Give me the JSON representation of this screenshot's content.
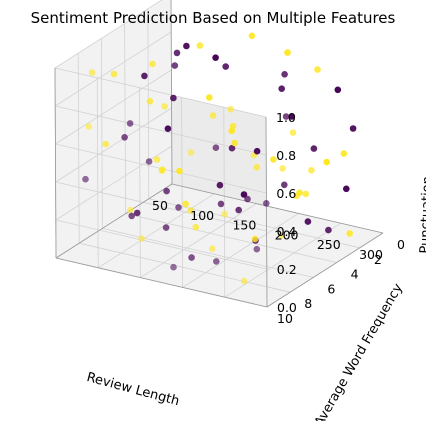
{
  "chart_data": {
    "type": "scatter",
    "projection": "3d",
    "title": "Sentiment Prediction Based on Multiple Features",
    "xlabel": "Review Length",
    "ylabel": "Average Word Frequency",
    "zlabel": "Punctuation",
    "xlim": [
      50,
      300
    ],
    "ylim": [
      0,
      10
    ],
    "zlim": [
      0,
      1
    ],
    "x_ticks": [
      50,
      100,
      150,
      200,
      250,
      300
    ],
    "y_ticks": [
      0,
      2,
      4,
      6,
      8,
      10
    ],
    "z_ticks": [
      0.0,
      0.2,
      0.4,
      0.6,
      0.8,
      1.0
    ],
    "grid": true,
    "colormap": "viridis",
    "class_colors": {
      "0": "#440154",
      "1": "#fde725"
    },
    "series": [
      {
        "sentiment": 0,
        "points": [
          [
            62,
            1.2,
            0.35
          ],
          [
            88,
            6.8,
            0.55
          ],
          [
            95,
            3.1,
            0.62
          ],
          [
            118,
            8.5,
            0.72
          ],
          [
            140,
            2.4,
            0.18
          ],
          [
            72,
            4.6,
            0.05
          ],
          [
            130,
            5.5,
            0.92
          ],
          [
            165,
            1.0,
            0.33
          ],
          [
            178,
            4.1,
            0.48
          ],
          [
            210,
            7.8,
            0.66
          ],
          [
            240,
            2.1,
            0.08
          ],
          [
            255,
            5.2,
            0.41
          ],
          [
            265,
            0.6,
            0.22
          ],
          [
            285,
            3.6,
            0.14
          ],
          [
            150,
            9.2,
            0.58
          ],
          [
            195,
            6.3,
            0.29
          ],
          [
            108,
            0.4,
            0.74
          ],
          [
            225,
            8.9,
            0.12
          ],
          [
            270,
            6.1,
            0.82
          ],
          [
            160,
            3.3,
            0.86
          ],
          [
            205,
            0.9,
            0.55
          ],
          [
            80,
            9.6,
            0.43
          ],
          [
            290,
            1.8,
            0.61
          ],
          [
            245,
            4.4,
            0.95
          ],
          [
            175,
            7.4,
            0.03
          ],
          [
            125,
            5.9,
            0.27
          ],
          [
            218,
            2.7,
            0.78
          ],
          [
            100,
            7.1,
            0.16
          ],
          [
            232,
            6.7,
            0.37
          ],
          [
            58,
            2.9,
            0.69
          ],
          [
            188,
            9.9,
            0.09
          ],
          [
            275,
            8.2,
            0.45
          ],
          [
            145,
            0.7,
            0.07
          ],
          [
            260,
            3.0,
            0.52
          ],
          [
            112,
            4.0,
            0.91
          ],
          [
            198,
            5.0,
            0.21
          ],
          [
            168,
            8.0,
            0.31
          ],
          [
            90,
            1.6,
            0.83
          ],
          [
            280,
            9.4,
            0.26
          ],
          [
            138,
            6.9,
            0.13
          ],
          [
            250,
            0.2,
            0.71
          ],
          [
            215,
            4.8,
            0.06
          ]
        ]
      },
      {
        "sentiment": 1,
        "points": [
          [
            70,
            0.8,
            0.12
          ],
          [
            98,
            5.1,
            0.88
          ],
          [
            155,
            2.2,
            0.41
          ],
          [
            182,
            6.0,
            0.73
          ],
          [
            222,
            1.5,
            0.19
          ],
          [
            248,
            7.3,
            0.64
          ],
          [
            268,
            4.3,
            0.34
          ],
          [
            295,
            2.5,
            0.09
          ],
          [
            122,
            8.8,
            0.28
          ],
          [
            60,
            6.4,
            0.47
          ],
          [
            135,
            3.7,
            0.96
          ],
          [
            170,
            9.5,
            0.57
          ],
          [
            202,
            3.9,
            0.02
          ],
          [
            238,
            9.1,
            0.39
          ],
          [
            285,
            6.6,
            0.77
          ],
          [
            85,
            3.4,
            0.24
          ],
          [
            110,
            1.1,
            0.56
          ],
          [
            158,
            5.8,
            0.11
          ],
          [
            192,
            0.3,
            0.85
          ],
          [
            228,
            5.6,
            0.49
          ],
          [
            262,
            2.8,
            0.93
          ],
          [
            298,
            8.6,
            0.32
          ],
          [
            76,
            9.0,
            0.68
          ],
          [
            148,
            7.7,
            0.81
          ],
          [
            212,
            8.3,
            0.15
          ],
          [
            272,
            1.3,
            0.44
          ],
          [
            102,
            2.6,
            0.05
          ],
          [
            185,
            4.5,
            0.62
          ],
          [
            242,
            3.2,
            0.26
          ],
          [
            128,
            0.5,
            0.38
          ],
          [
            65,
            7.9,
            0.91
          ],
          [
            162,
            6.5,
            0.23
          ],
          [
            208,
            9.8,
            0.71
          ],
          [
            255,
            8.7,
            0.04
          ],
          [
            290,
            5.4,
            0.53
          ],
          [
            92,
            4.9,
            0.67
          ],
          [
            172,
            1.9,
            0.98
          ],
          [
            235,
            0.1,
            0.31
          ],
          [
            118,
            6.2,
            0.44
          ],
          [
            142,
            9.3,
            0.17
          ],
          [
            278,
            7.0,
            0.59
          ],
          [
            198,
            2.0,
            0.36
          ],
          [
            55,
            5.3,
            0.79
          ],
          [
            225,
            7.6,
            0.87
          ]
        ]
      }
    ]
  }
}
